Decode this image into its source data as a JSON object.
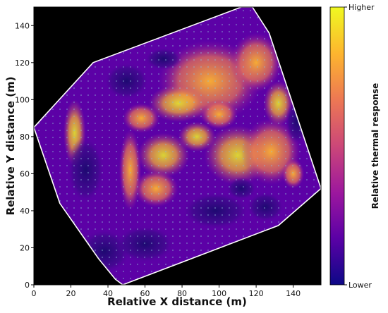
{
  "chart_data": {
    "type": "heatmap",
    "title": "",
    "xlabel": "Relative X distance (m)",
    "ylabel": "Relative Y distance (m)",
    "xlim": [
      0,
      155
    ],
    "ylim": [
      0,
      150
    ],
    "xticks": [
      0,
      20,
      40,
      60,
      80,
      100,
      120,
      140
    ],
    "yticks": [
      0,
      20,
      40,
      60,
      80,
      100,
      120,
      140
    ],
    "colorbar": {
      "label": "Relative thermal response",
      "top_label": "Higher",
      "bottom_label": "Lower",
      "colormap": [
        "#0d0887",
        "#5c01a6",
        "#9c179e",
        "#cc4778",
        "#ed7953",
        "#fdb42f",
        "#f0f921"
      ]
    },
    "site_boundary": [
      [
        0,
        85
      ],
      [
        32,
        120
      ],
      [
        112,
        150
      ],
      [
        118,
        150
      ],
      [
        127,
        136
      ],
      [
        155,
        52
      ],
      [
        132,
        32
      ],
      [
        48,
        0
      ],
      [
        44,
        3
      ],
      [
        35,
        14
      ],
      [
        14,
        44
      ],
      [
        0,
        85
      ]
    ],
    "background": "#000000",
    "boundary_color": "#ffffff"
  }
}
